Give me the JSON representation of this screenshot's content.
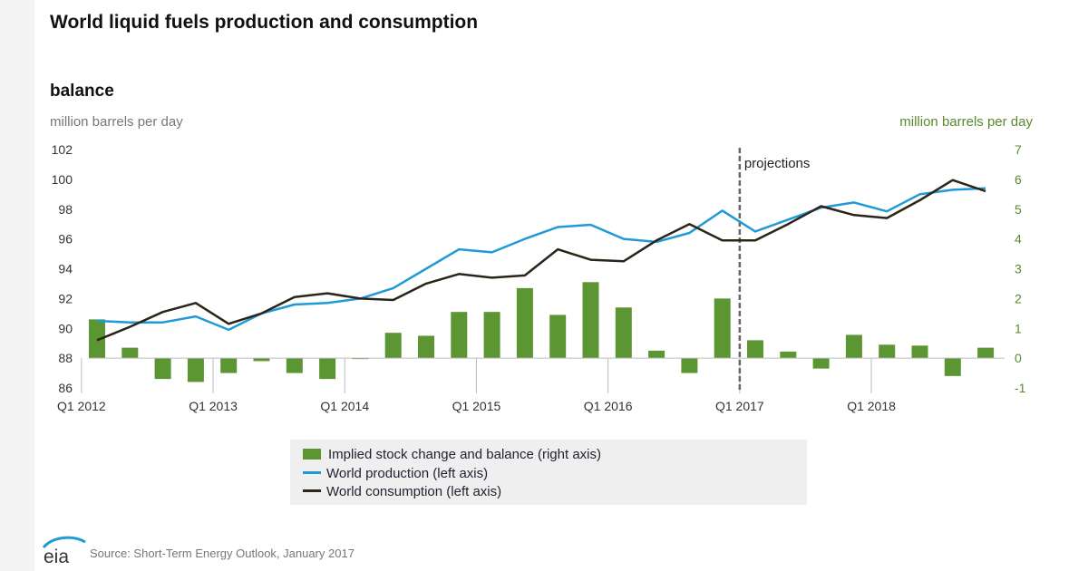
{
  "page": {
    "title": "World liquid fuels production and consumption",
    "subtitle": "balance",
    "left_unit": "million barrels per day",
    "right_unit": "million barrels per day",
    "source": "Source: Short-Term Energy Outlook, January 2017",
    "logo_text": "eia"
  },
  "legend": {
    "bar": "Implied stock change and balance (right axis)",
    "production": "World production (left axis)",
    "consumption": "World consumption (left axis)"
  },
  "colors": {
    "bar": "#5b9632",
    "production": "#1f9ad6",
    "consumption": "#2b2418",
    "projection_line": "#666666",
    "right_axis": "#5a8a2a"
  },
  "chart_data": {
    "type": "bar",
    "categories": [
      "Q1 2012",
      "Q2 2012",
      "Q3 2012",
      "Q4 2012",
      "Q1 2013",
      "Q2 2013",
      "Q3 2013",
      "Q4 2013",
      "Q1 2014",
      "Q2 2014",
      "Q3 2014",
      "Q4 2014",
      "Q1 2015",
      "Q2 2015",
      "Q3 2015",
      "Q4 2015",
      "Q1 2016",
      "Q2 2016",
      "Q3 2016",
      "Q4 2016",
      "Q1 2017",
      "Q2 2017",
      "Q3 2017",
      "Q4 2017",
      "Q1 2018",
      "Q2 2018",
      "Q3 2018",
      "Q4 2018"
    ],
    "x_tick_labels": [
      "Q1 2012",
      "Q1 2013",
      "Q1 2014",
      "Q1 2015",
      "Q1 2016",
      "Q1 2017",
      "Q1 2018"
    ],
    "left_axis": {
      "ylim": [
        86,
        102
      ],
      "ticks": [
        86,
        88,
        90,
        92,
        94,
        96,
        98,
        100,
        102
      ]
    },
    "right_axis": {
      "ylim": [
        -1,
        7
      ],
      "ticks": [
        -1,
        0,
        1,
        2,
        3,
        4,
        5,
        6,
        7
      ]
    },
    "series": [
      {
        "name": "Implied stock change and balance (right axis)",
        "type": "bar",
        "axis": "right",
        "values": [
          1.3,
          0.35,
          -0.7,
          -0.8,
          -0.5,
          -0.1,
          -0.5,
          -0.7,
          0.0,
          0.85,
          0.75,
          1.55,
          1.55,
          2.35,
          1.45,
          2.55,
          1.7,
          0.25,
          -0.5,
          2.0,
          0.6,
          0.22,
          -0.35,
          0.78,
          0.45,
          0.42,
          -0.6,
          0.35
        ]
      },
      {
        "name": "World production (left axis)",
        "type": "line",
        "axis": "left",
        "values": [
          90.5,
          90.4,
          90.4,
          90.8,
          89.9,
          91.0,
          91.6,
          91.7,
          92.0,
          92.7,
          94.0,
          95.3,
          95.1,
          96.0,
          96.8,
          96.95,
          96.0,
          95.8,
          96.4,
          97.9,
          96.5,
          97.3,
          98.1,
          98.45,
          97.85,
          99.0,
          99.3,
          99.4
        ]
      },
      {
        "name": "World consumption (left axis)",
        "type": "line",
        "axis": "left",
        "values": [
          89.2,
          90.1,
          91.1,
          91.7,
          90.3,
          91.0,
          92.1,
          92.35,
          92.0,
          91.9,
          93.0,
          93.65,
          93.4,
          93.55,
          95.3,
          94.6,
          94.5,
          95.9,
          97.0,
          95.9,
          95.9,
          97.0,
          98.2,
          97.6,
          97.4,
          98.6,
          99.95,
          99.2
        ]
      }
    ],
    "projection_start": "Q1 2017",
    "projection_label": "projections",
    "grid": false,
    "legend_position": "bottom-center"
  }
}
